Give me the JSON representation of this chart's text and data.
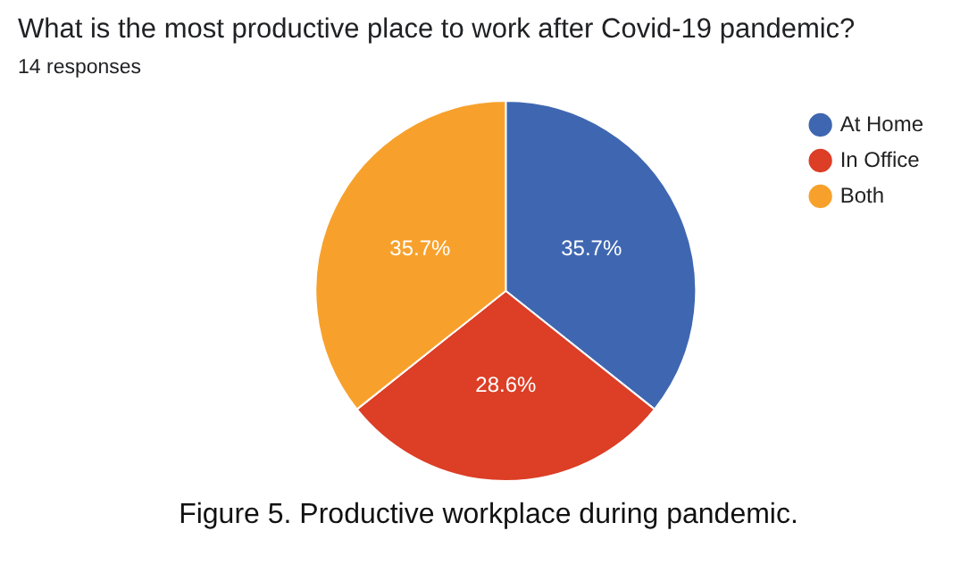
{
  "chart_data": {
    "type": "pie",
    "title": "What is the most productive place to work after Covid-19 pandemic?",
    "subtitle": "14 responses",
    "categories": [
      "At Home",
      "In Office",
      "Both"
    ],
    "values": [
      35.7,
      28.6,
      35.7
    ],
    "colors": [
      "#3f67b1",
      "#dc3e26",
      "#f7a12c"
    ],
    "value_labels": [
      "35.7%",
      "28.6%",
      "35.7%"
    ],
    "legend": "right",
    "annotations": [
      "Figure 5. Productive workplace during pandemic."
    ]
  }
}
